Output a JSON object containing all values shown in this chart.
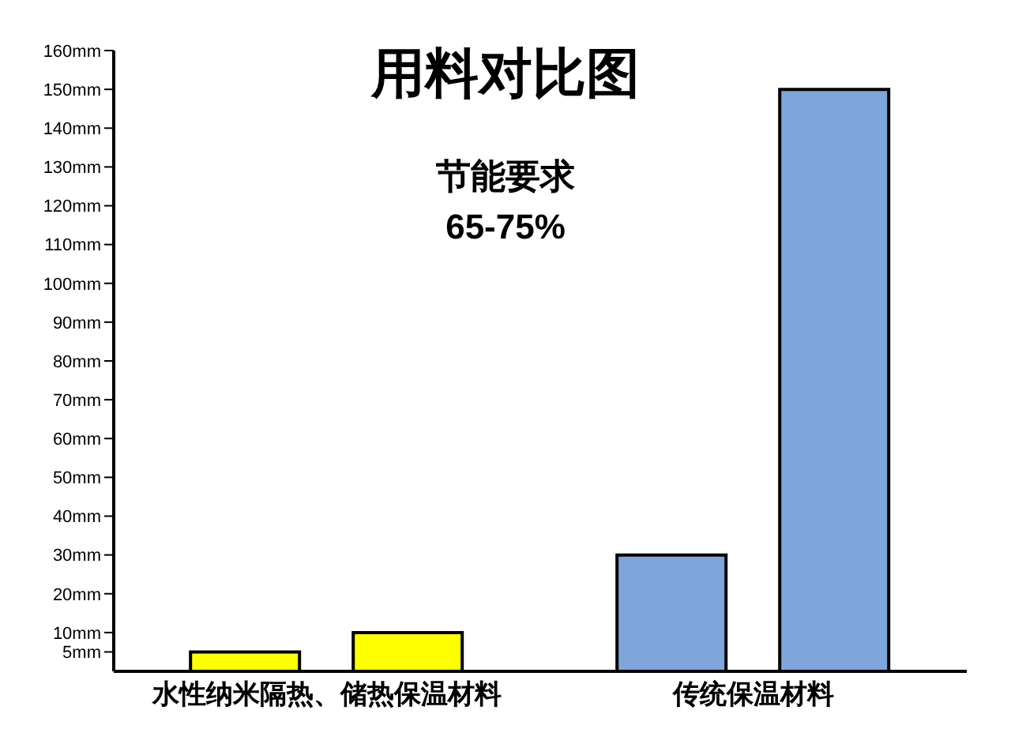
{
  "chart_data": {
    "type": "bar",
    "title": "用料对比图",
    "annotations": [
      "节能要求",
      "65-75%"
    ],
    "categories": [
      "水性纳米隔热、储热保温材料",
      "传统保温材料"
    ],
    "series": [
      {
        "values": [
          5,
          30
        ],
        "colors": [
          "#ffff00",
          "#7ea6dc"
        ]
      },
      {
        "values": [
          10,
          150
        ],
        "colors": [
          "#ffff00",
          "#7ea6dc"
        ]
      }
    ],
    "ylim": [
      0,
      160
    ],
    "yticks": [
      {
        "value": 5,
        "label": "5mm"
      },
      {
        "value": 10,
        "label": "10mm"
      },
      {
        "value": 20,
        "label": "20mm"
      },
      {
        "value": 30,
        "label": "30mm"
      },
      {
        "value": 40,
        "label": "40mm"
      },
      {
        "value": 50,
        "label": "50mm"
      },
      {
        "value": 60,
        "label": "60mm"
      },
      {
        "value": 70,
        "label": "70mm"
      },
      {
        "value": 80,
        "label": "80mm"
      },
      {
        "value": 90,
        "label": "90mm"
      },
      {
        "value": 100,
        "label": "100mm"
      },
      {
        "value": 110,
        "label": "110mm"
      },
      {
        "value": 120,
        "label": "120mm"
      },
      {
        "value": 130,
        "label": "130mm"
      },
      {
        "value": 140,
        "label": "140mm"
      },
      {
        "value": 150,
        "label": "150mm"
      },
      {
        "value": 160,
        "label": "160mm"
      }
    ],
    "grid": false,
    "legend": false
  }
}
